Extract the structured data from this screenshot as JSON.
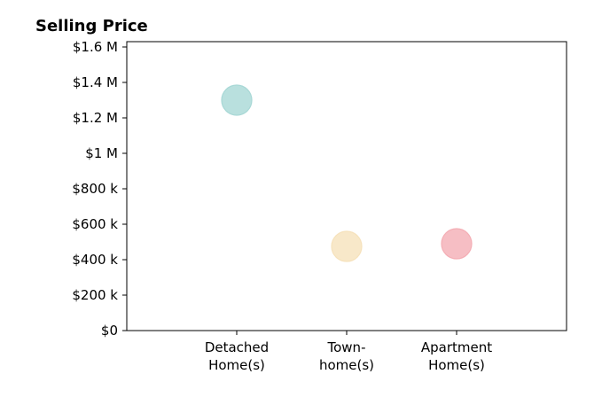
{
  "chart_data": {
    "type": "scatter",
    "title": "Selling Price",
    "xlabel": "",
    "ylabel": "",
    "categories": [
      [
        "Detached",
        "Home(s)"
      ],
      [
        "Town-",
        "home(s)"
      ],
      [
        "Apartment",
        "Home(s)"
      ]
    ],
    "values": [
      1300000,
      475000,
      490000
    ],
    "colors": [
      "#a8d8d6",
      "#f6e2bc",
      "#f4aeb5"
    ],
    "point_opacity": 0.8,
    "yticks": [
      {
        "value": 0,
        "label": "$0"
      },
      {
        "value": 200000,
        "label": "$200 k"
      },
      {
        "value": 400000,
        "label": "$400 k"
      },
      {
        "value": 600000,
        "label": "$600 k"
      },
      {
        "value": 800000,
        "label": "$800 k"
      },
      {
        "value": 1000000,
        "label": "$1 M"
      },
      {
        "value": 1200000,
        "label": "$1.2 M"
      },
      {
        "value": 1400000,
        "label": "$1.4 M"
      },
      {
        "value": 1600000,
        "label": "$1.6 M"
      }
    ],
    "ylim": [
      0,
      1630000
    ],
    "grid": false,
    "legend": "none"
  }
}
